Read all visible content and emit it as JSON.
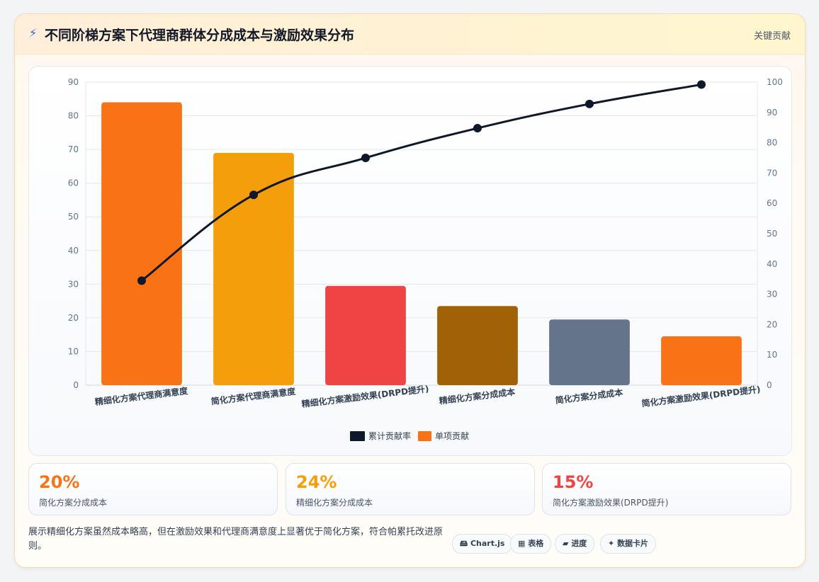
{
  "header": {
    "bolt_icon": "⚡",
    "title": "不同阶梯方案下代理商群体分成成本与激励效果分布",
    "key_label": "关键贡献"
  },
  "chart_data": {
    "type": "bar",
    "categories": [
      "精细化方案代理商满意度",
      "简化方案代理商满意度",
      "精细化方案激励效果(DRPD提升)",
      "精细化方案分成成本",
      "简化方案分成成本",
      "简化方案激励效果(DRPD提升)"
    ],
    "series": [
      {
        "name": "单项贡献",
        "type": "bar",
        "axis": "left",
        "values": [
          84,
          69,
          29.5,
          23.5,
          19.5,
          14.5
        ],
        "colors": [
          "#f97316",
          "#f59e0b",
          "#ef4444",
          "#a16207",
          "#64748b",
          "#f97316"
        ]
      },
      {
        "name": "累计贡献率",
        "type": "line",
        "axis": "right",
        "values": [
          34.5,
          62.8,
          75,
          84.8,
          92.8,
          99.2
        ],
        "color": "#0f172a"
      }
    ],
    "ylim_left": [
      0,
      90
    ],
    "yticks_left": [
      0,
      10,
      20,
      30,
      40,
      50,
      60,
      70,
      80,
      90
    ],
    "ylim_right": [
      0,
      100
    ],
    "yticks_right": [
      0,
      10,
      20,
      30,
      40,
      50,
      60,
      70,
      80,
      90,
      100
    ],
    "grid": true,
    "legend_position": "bottom"
  },
  "stats": [
    {
      "value": "20%",
      "label": "简化方案分成成本",
      "color": "#f97316"
    },
    {
      "value": "24%",
      "label": "精细化方案分成成本",
      "color": "#f59e0b"
    },
    {
      "value": "15%",
      "label": "简化方案激励效果(DRPD提升)",
      "color": "#ef4444"
    }
  ],
  "footer": {
    "description": "展示精细化方案虽然成本略高，但在激励效果和代理商满意度上显著优于简化方案，符合帕累托改进原则。",
    "tags": [
      {
        "icon": "🖴",
        "label": "Chart.js"
      },
      {
        "icon": "▦",
        "label": "表格"
      },
      {
        "icon": "▰",
        "label": "进度"
      },
      {
        "icon": "✦",
        "label": "数据卡片"
      }
    ]
  }
}
